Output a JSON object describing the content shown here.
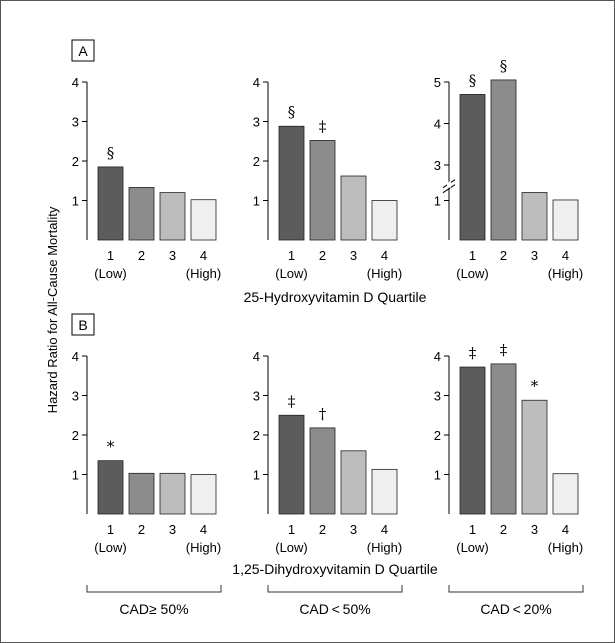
{
  "y_axis_title": "Hazard Ratio for All-Cause Mortality",
  "colors": {
    "q1": "#5c5c5c",
    "q2": "#8c8c8c",
    "q3": "#bdbdbd",
    "q4": "#efefef"
  },
  "rows": [
    {
      "panel_label": "A",
      "x_title": "25-Hydroxyvitamin D Quartile"
    },
    {
      "panel_label": "B",
      "x_title": "1,25-Dihydroxyvitamin D Quartile"
    }
  ],
  "groups": [
    {
      "label": "CAD≥ 50%"
    },
    {
      "label": "CAD < 50%"
    },
    {
      "label": "CAD < 20%"
    }
  ],
  "chart_data": [
    {
      "type": "bar",
      "panel": "A",
      "group": "CAD≥ 50%",
      "categories": [
        "1",
        "2",
        "3",
        "4"
      ],
      "category_sublabels": [
        "(Low)",
        "",
        "",
        "(High)"
      ],
      "values": [
        1.85,
        1.33,
        1.2,
        1.02
      ],
      "markers": [
        "§",
        "",
        "",
        ""
      ],
      "ylim": [
        0,
        4
      ],
      "yticks": [
        "1",
        "2",
        "3",
        "4"
      ],
      "xlabel": "25-Hydroxyvitamin D Quartile"
    },
    {
      "type": "bar",
      "panel": "A",
      "group": "CAD < 50%",
      "categories": [
        "1",
        "2",
        "3",
        "4"
      ],
      "category_sublabels": [
        "(Low)",
        "",
        "",
        "(High)"
      ],
      "values": [
        2.88,
        2.52,
        1.62,
        1.0
      ],
      "markers": [
        "§",
        "‡",
        "",
        ""
      ],
      "ylim": [
        0,
        4
      ],
      "yticks": [
        "1",
        "2",
        "3",
        "4"
      ],
      "xlabel": "25-Hydroxyvitamin D Quartile"
    },
    {
      "type": "bar",
      "panel": "A",
      "group": "CAD < 20%",
      "categories": [
        "1",
        "2",
        "3",
        "4"
      ],
      "category_sublabels": [
        "(Low)",
        "",
        "",
        "(High)"
      ],
      "values": [
        4.7,
        5.05,
        1.45,
        1.03
      ],
      "markers": [
        "§",
        "§",
        "",
        ""
      ],
      "ylim": [
        0,
        5
      ],
      "yticks": [
        "1",
        "3",
        "4",
        "5"
      ],
      "axis_break": true,
      "xlabel": "25-Hydroxyvitamin D Quartile"
    },
    {
      "type": "bar",
      "panel": "B",
      "group": "CAD≥ 50%",
      "categories": [
        "1",
        "2",
        "3",
        "4"
      ],
      "category_sublabels": [
        "(Low)",
        "",
        "",
        "(High)"
      ],
      "values": [
        1.35,
        1.03,
        1.03,
        1.0
      ],
      "markers": [
        "*",
        "",
        "",
        ""
      ],
      "ylim": [
        0,
        4
      ],
      "yticks": [
        "1",
        "2",
        "3",
        "4"
      ],
      "xlabel": "1,25-Dihydroxyvitamin D Quartile"
    },
    {
      "type": "bar",
      "panel": "B",
      "group": "CAD < 50%",
      "categories": [
        "1",
        "2",
        "3",
        "4"
      ],
      "category_sublabels": [
        "(Low)",
        "",
        "",
        "(High)"
      ],
      "values": [
        2.5,
        2.18,
        1.6,
        1.13
      ],
      "markers": [
        "‡",
        "†",
        "",
        ""
      ],
      "ylim": [
        0,
        4
      ],
      "yticks": [
        "1",
        "2",
        "3",
        "4"
      ],
      "xlabel": "1,25-Dihydroxyvitamin D Quartile"
    },
    {
      "type": "bar",
      "panel": "B",
      "group": "CAD < 20%",
      "categories": [
        "1",
        "2",
        "3",
        "4"
      ],
      "category_sublabels": [
        "(Low)",
        "",
        "",
        "(High)"
      ],
      "values": [
        3.72,
        3.8,
        2.88,
        1.02
      ],
      "markers": [
        "‡",
        "‡",
        "*",
        ""
      ],
      "ylim": [
        0,
        4
      ],
      "yticks": [
        "1",
        "2",
        "3",
        "4"
      ],
      "xlabel": "1,25-Dihydroxyvitamin D Quartile"
    }
  ]
}
